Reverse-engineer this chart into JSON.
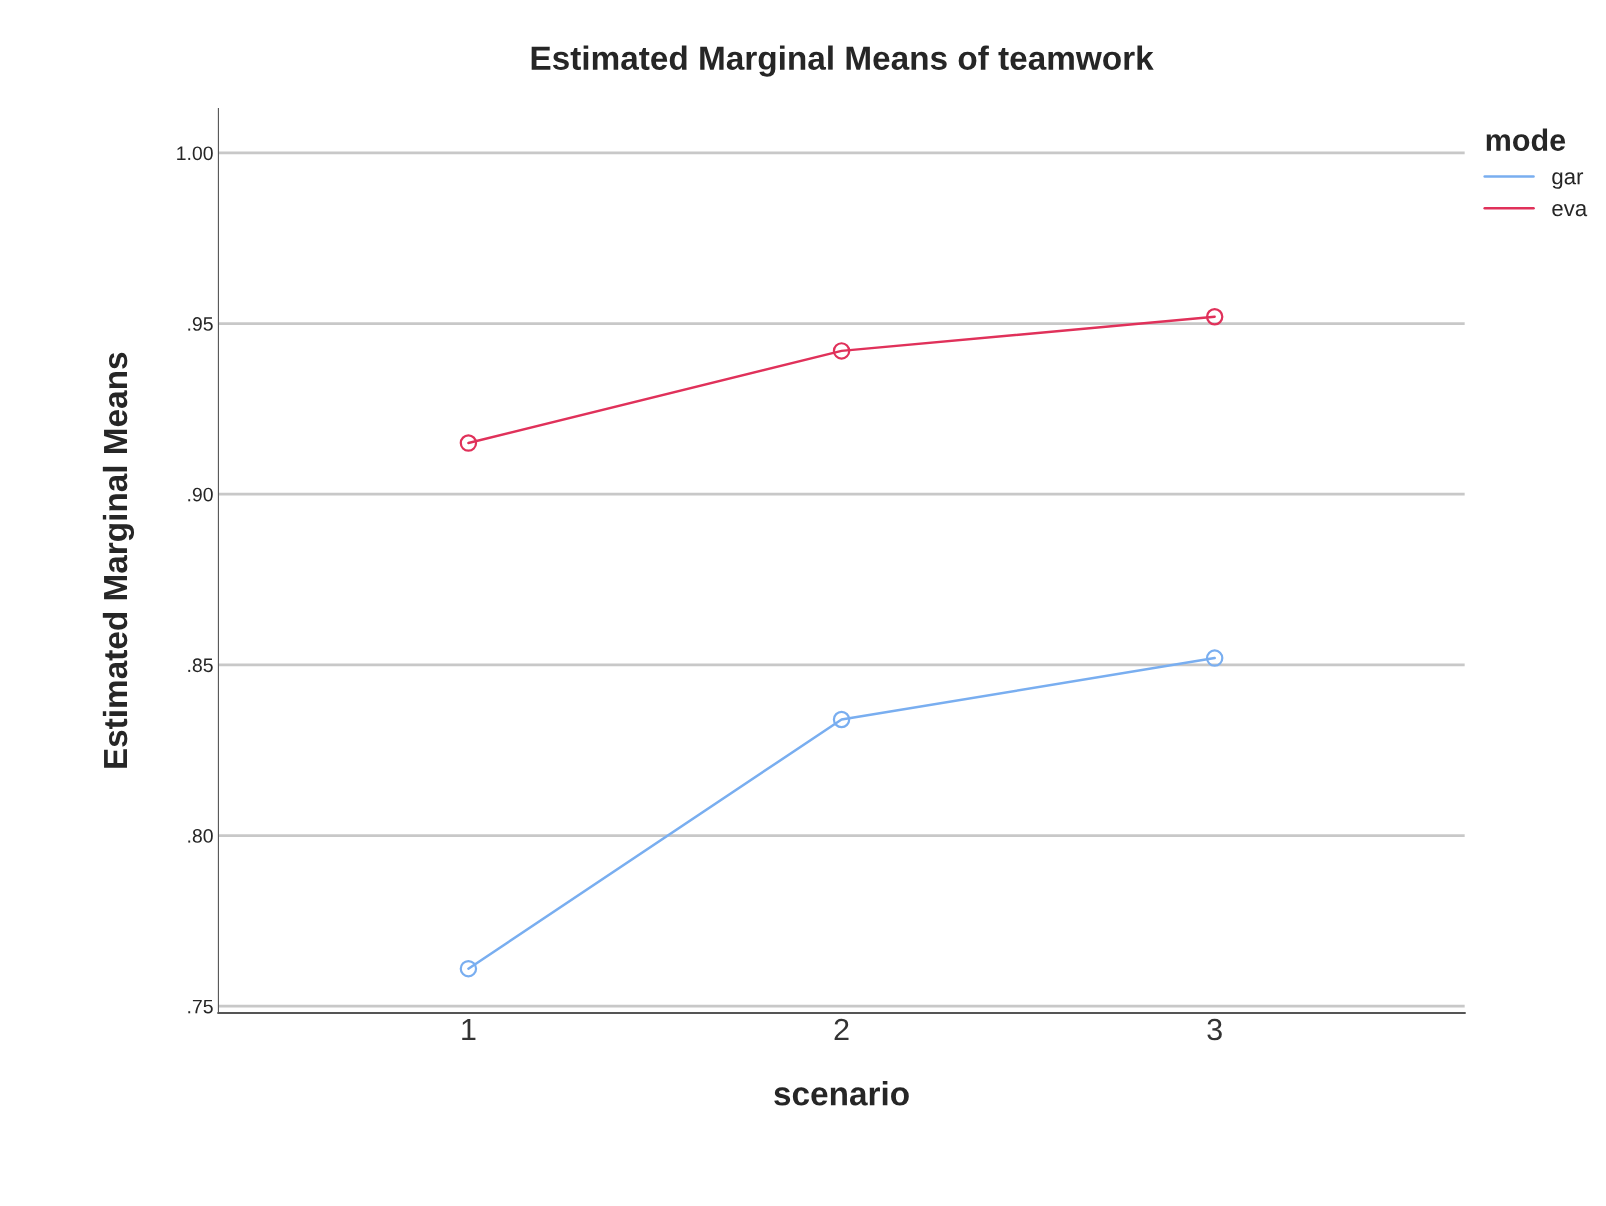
{
  "chart_data": {
    "type": "line",
    "title": "Estimated Marginal Means of teamwork",
    "xlabel": "scenario",
    "ylabel": "Estimated Marginal Means",
    "legend_title": "mode",
    "categories": [
      "1",
      "2",
      "3"
    ],
    "series": [
      {
        "name": "gar",
        "color": "#79aef0",
        "values": [
          0.761,
          0.834,
          0.852
        ]
      },
      {
        "name": "eva",
        "color": "#e0315a",
        "values": [
          0.915,
          0.942,
          0.952
        ]
      }
    ],
    "ylim": [
      0.748,
      1.013
    ],
    "yticks": [
      {
        "value": 0.75,
        "label": ".75"
      },
      {
        "value": 0.8,
        "label": ".80"
      },
      {
        "value": 0.85,
        "label": ".85"
      },
      {
        "value": 0.9,
        "label": ".90"
      },
      {
        "value": 0.95,
        "label": ".95"
      },
      {
        "value": 1.0,
        "label": "1.00"
      }
    ],
    "grid": "y",
    "legend": "top right",
    "marker": "circle"
  }
}
